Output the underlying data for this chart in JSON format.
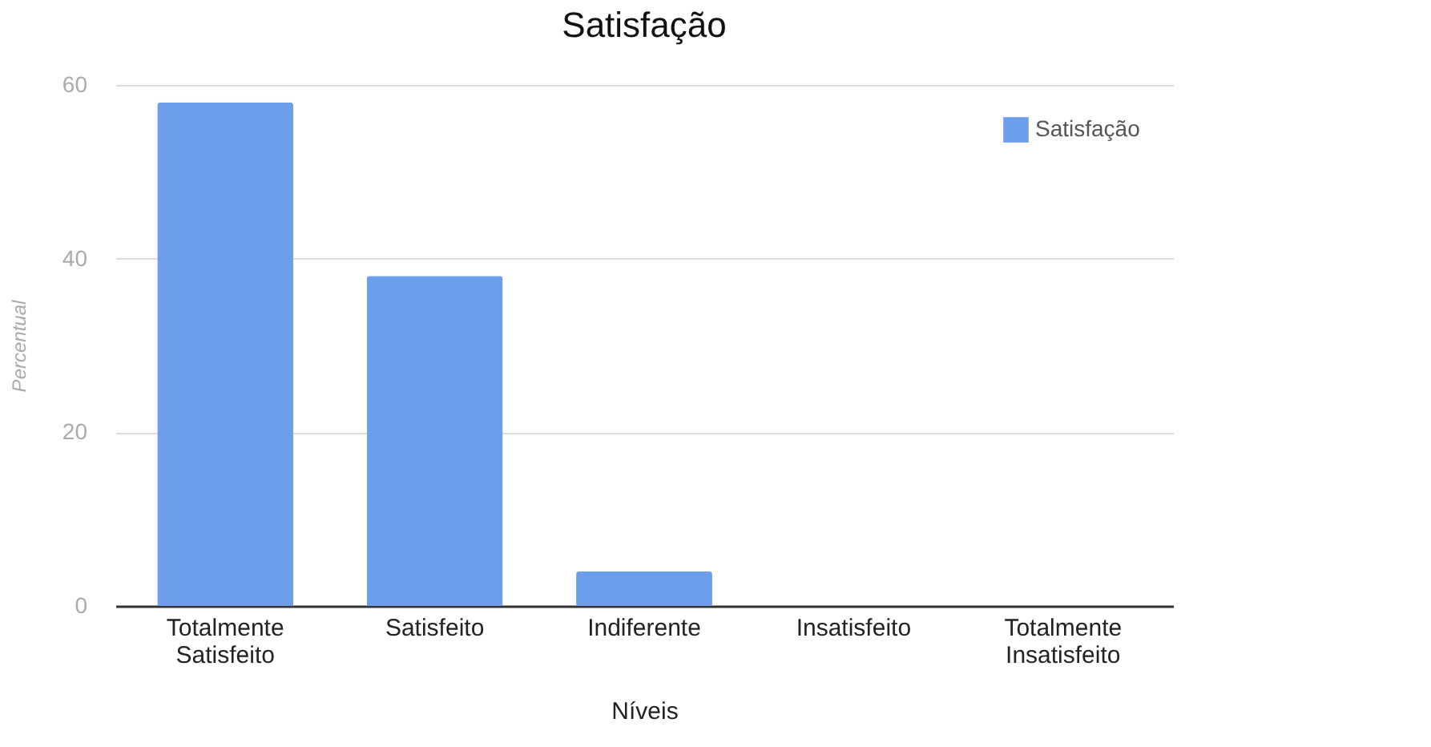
{
  "chart_data": {
    "type": "bar",
    "title": "Satisfação",
    "xlabel": "Níveis",
    "ylabel": "Percentual",
    "categories": [
      "Totalmente Satisfeito",
      "Satisfeito",
      "Indiferente",
      "Insatisfeito",
      "Totalmente Insatisfeito"
    ],
    "series": [
      {
        "name": "Satisfação",
        "color": "#6d9eeb",
        "values": [
          58,
          38,
          4,
          0,
          0
        ]
      }
    ],
    "ylim": [
      0,
      60
    ],
    "yticks": [
      0,
      20,
      40,
      60
    ],
    "grid": "y",
    "legend": "top right"
  }
}
